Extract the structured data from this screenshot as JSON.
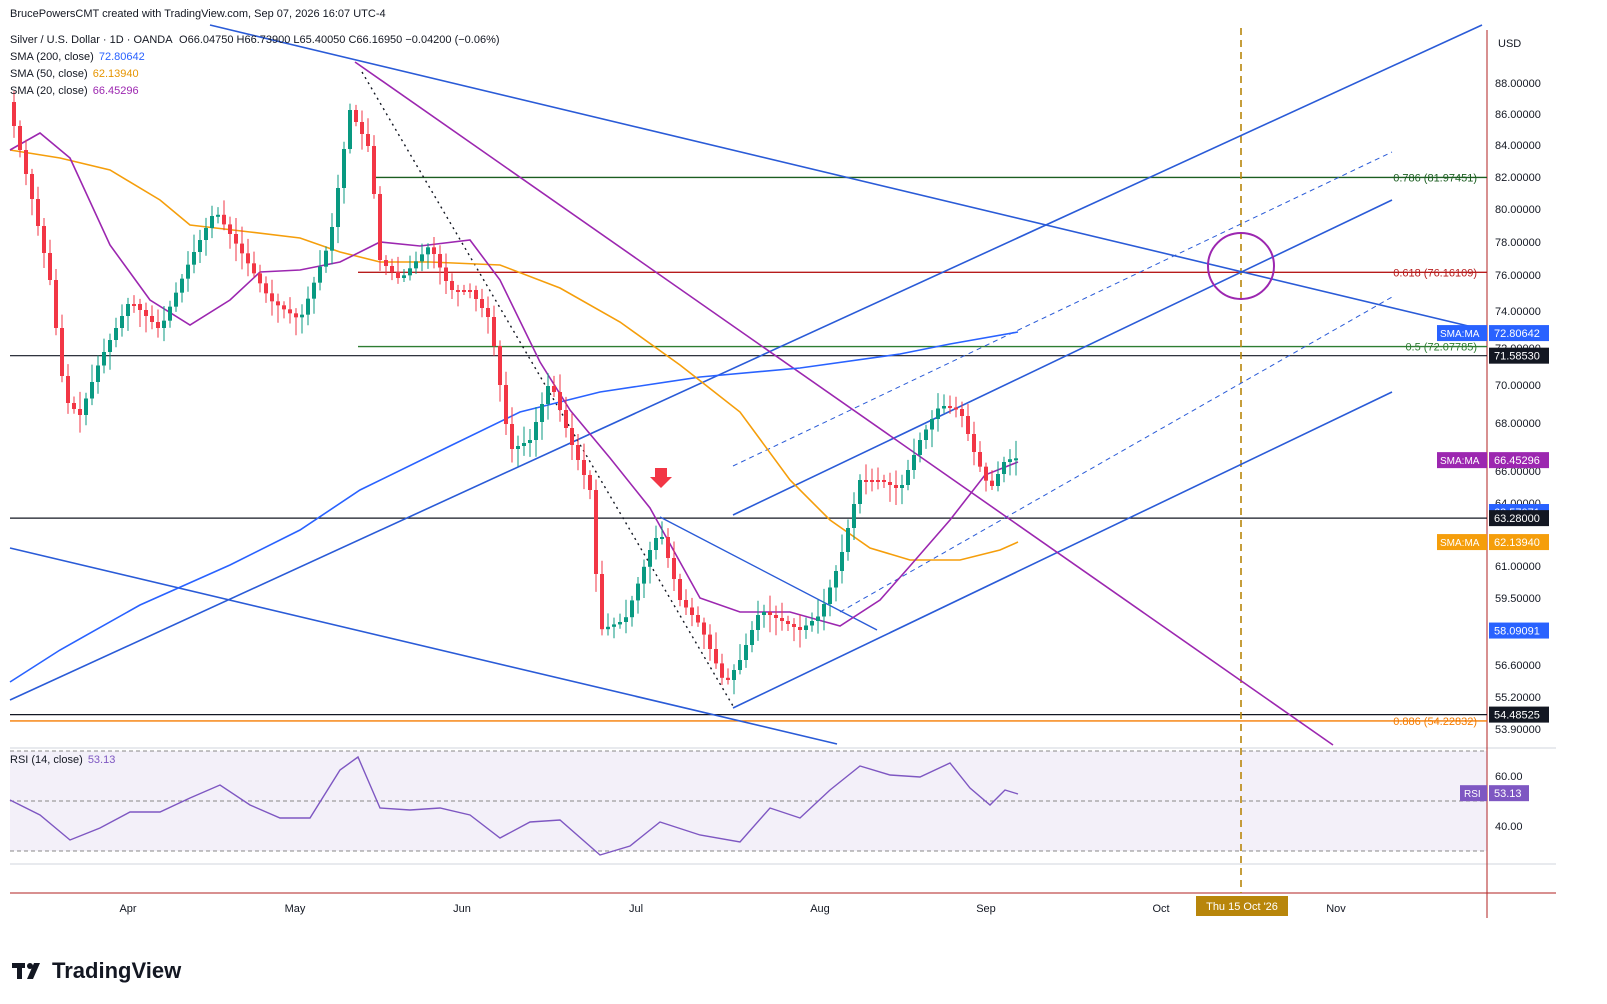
{
  "attribution": "BrucePowersCMT created with TradingView.com, Sep 07, 2026 16:07 UTC-4",
  "header": {
    "symbol": "Silver / U.S. Dollar · 1D · OANDA",
    "ohlc": "O66.04750 H66.73900 L65.40050 C66.16950 −0.04200 (−0.06%)",
    "sma200_label": "SMA (200, close)",
    "sma200_value": "72.80642",
    "sma50_label": "SMA (50, close)",
    "sma50_value": "62.13940",
    "sma20_label": "SMA (20, close)",
    "sma20_value": "66.45296",
    "rsi_label": "RSI (14, close)",
    "rsi_value": "53.13"
  },
  "brand": "TradingView",
  "colors": {
    "up": "#089981",
    "down": "#f23645",
    "sma200": "#2962ff",
    "sma50": "#f59e0b",
    "sma20": "#9c27b0",
    "trend_blue": "#2a5bd7",
    "rsi": "#7e57c2",
    "fib786": "#1b5e20",
    "fib618": "#b71c1c",
    "fib50": "#2e7d32",
    "fib886": "#f57c00",
    "vline": "#b8860b"
  },
  "chart_data": {
    "type": "candlestick",
    "currency": "USD",
    "x_labels": [
      "Apr",
      "May",
      "Jun",
      "Jul",
      "Aug",
      "Sep",
      "Oct",
      "Nov"
    ],
    "y_ticks": [
      "88.00000",
      "86.00000",
      "84.00000",
      "82.00000",
      "80.00000",
      "78.00000",
      "76.00000",
      "74.00000",
      "72.00000",
      "70.00000",
      "68.00000",
      "66.00000",
      "64.00000",
      "61.00000",
      "59.50000",
      "56.60000",
      "55.20000",
      "53.90000"
    ],
    "price_badges": [
      {
        "label": "SMA:MA",
        "value": "72.80642",
        "color": "#2962ff"
      },
      {
        "label": "",
        "value": "71.58530",
        "color": "#131722"
      },
      {
        "label": "SMA:MA",
        "value": "66.45296",
        "color": "#9c27b0"
      },
      {
        "label": "",
        "value": "63.57071",
        "color": "#2962ff"
      },
      {
        "label": "",
        "value": "63.28000",
        "color": "#131722"
      },
      {
        "label": "SMA:MA",
        "value": "62.13940",
        "color": "#f59e0b"
      },
      {
        "label": "",
        "value": "58.09091",
        "color": "#2962ff"
      },
      {
        "label": "",
        "value": "54.48525",
        "color": "#131722"
      }
    ],
    "fib_levels": [
      {
        "label": "0.786 (81.97451)",
        "value": 81.97451
      },
      {
        "label": "0.618 (76.16109)",
        "value": 76.16109
      },
      {
        "label": "0.5 (72.07785)",
        "value": 72.07785
      },
      {
        "label": "0.886 (54.22832)",
        "value": 54.22832
      }
    ],
    "horizontal_levels": [
      71.5853,
      63.28,
      54.48525
    ],
    "vertical_marker_label": "Thu 15 Oct '26",
    "rsi": {
      "ticks": [
        "60.00",
        "40.00"
      ],
      "badge_label": "RSI",
      "badge_value": "53.13"
    }
  }
}
